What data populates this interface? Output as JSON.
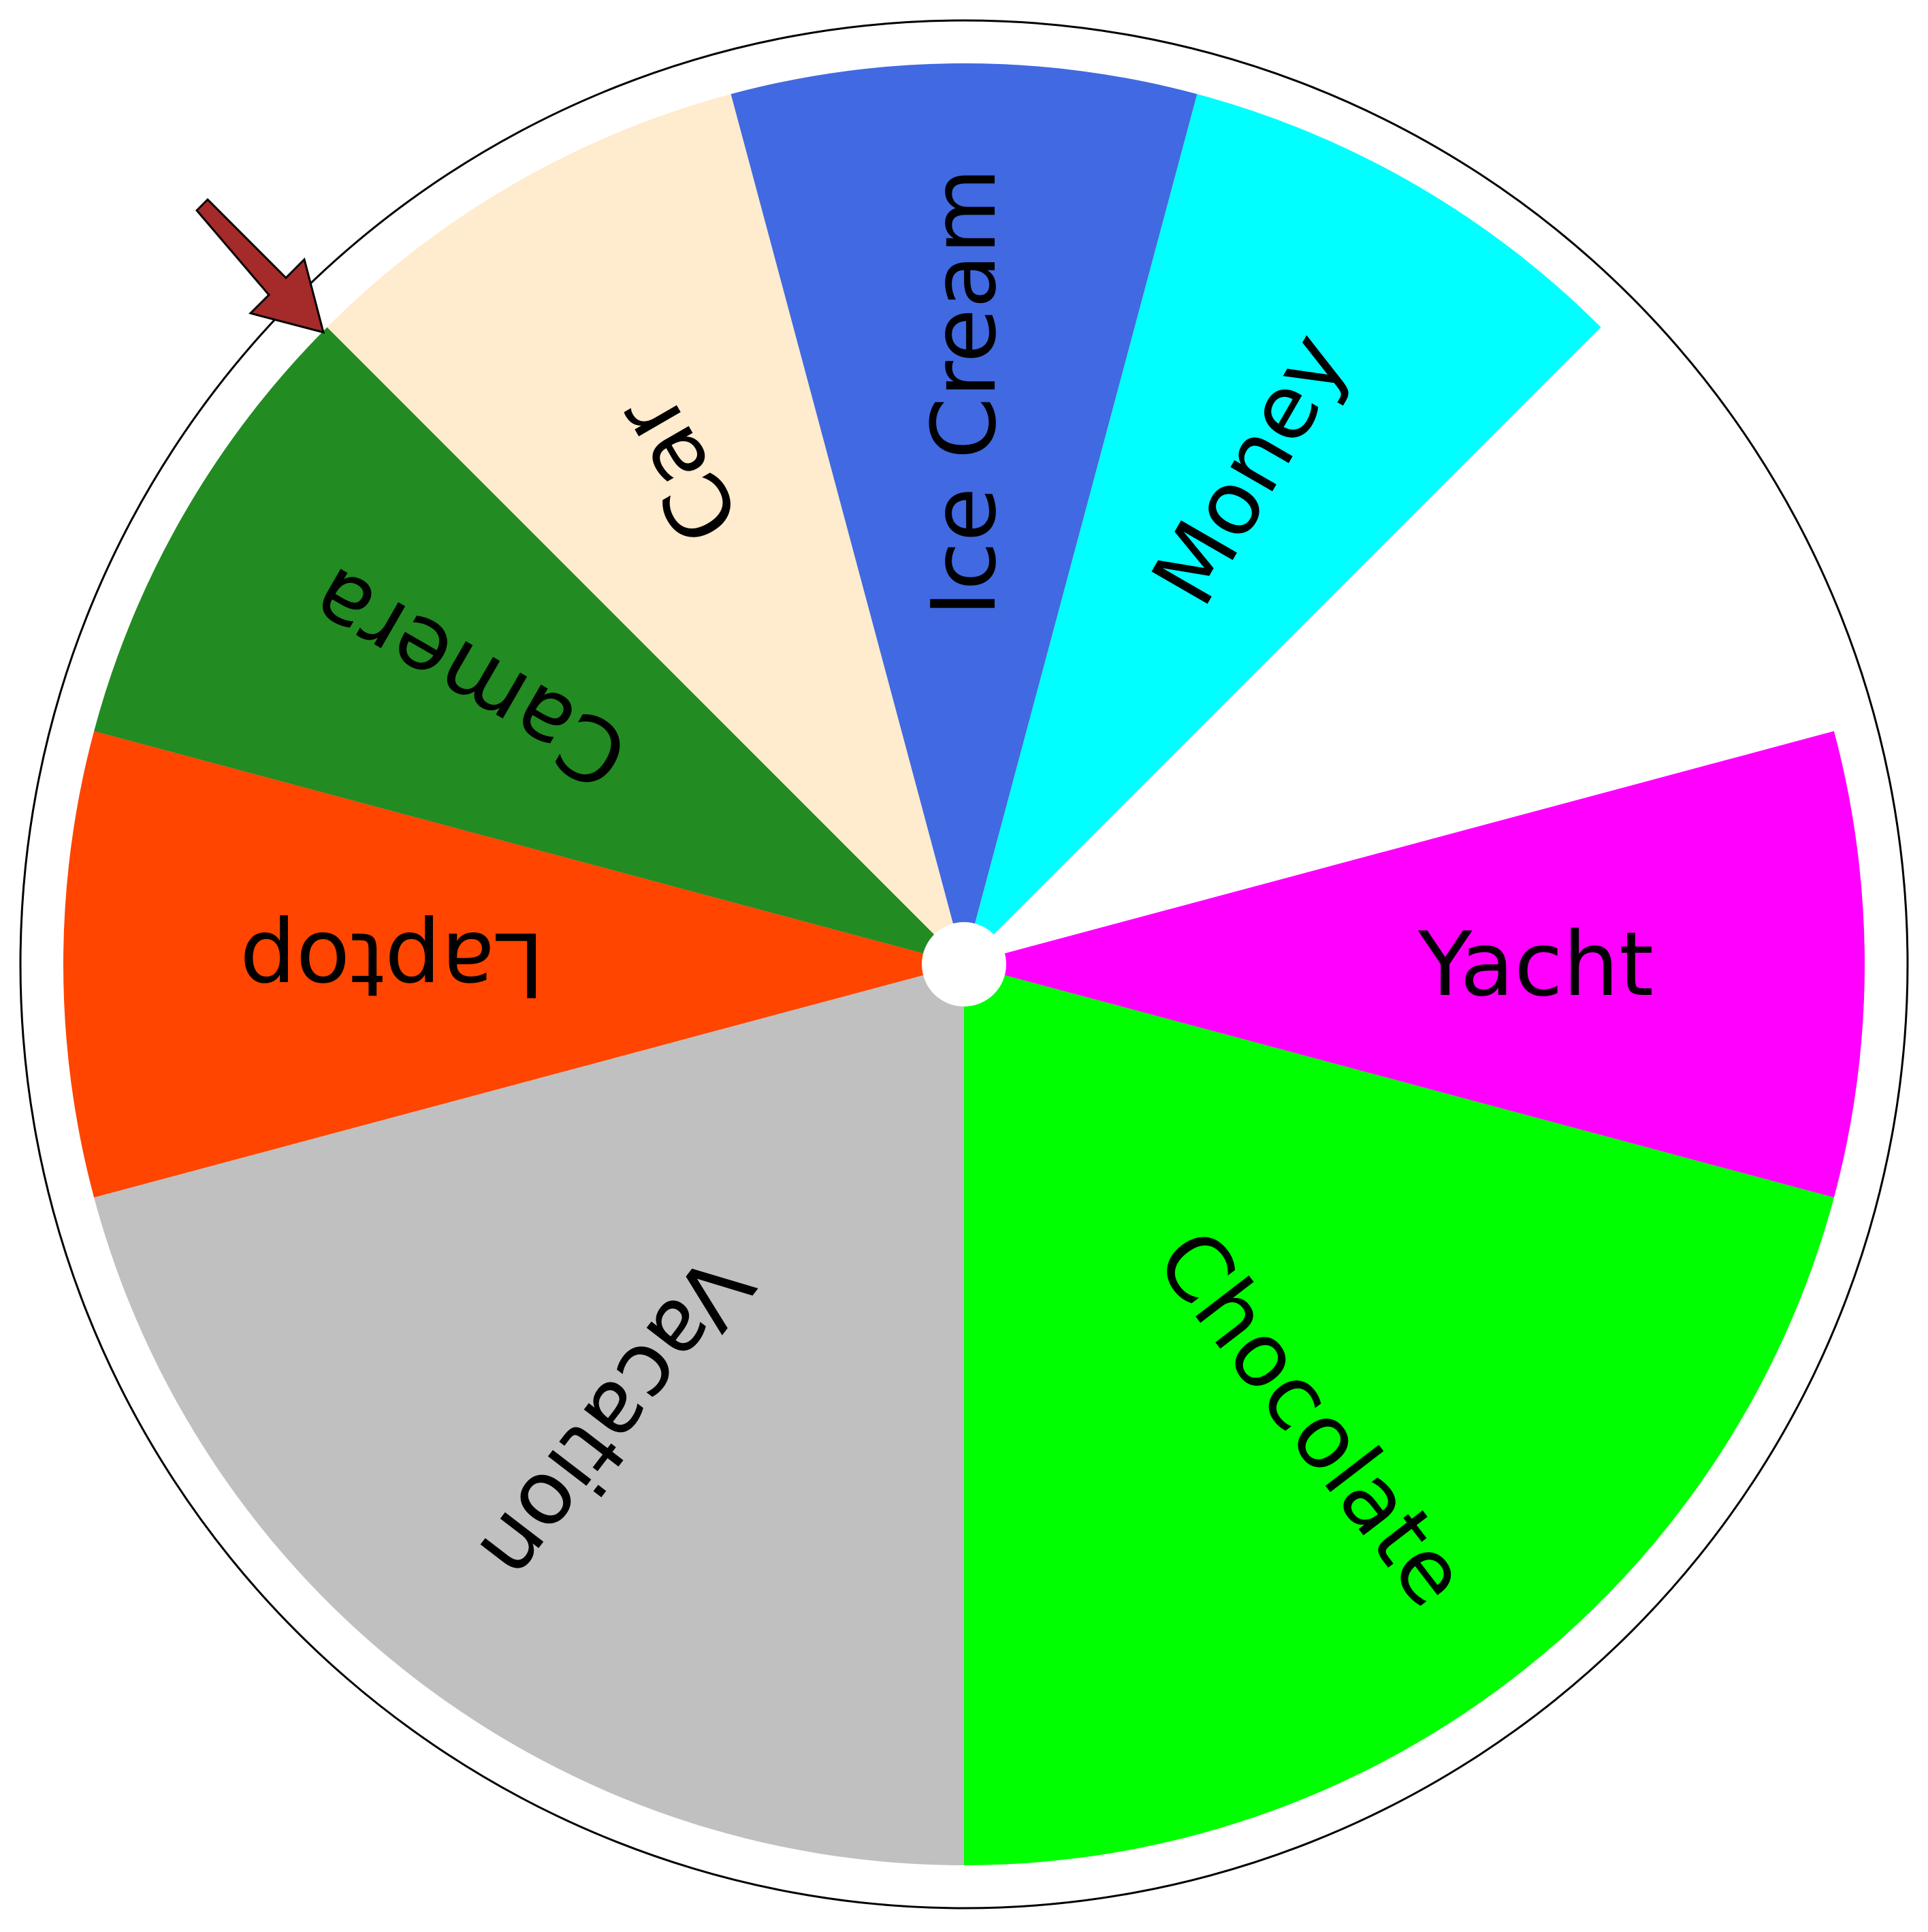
{
  "wheel": {
    "segments": [
      {
        "label": "Yacht",
        "color": "#ff00ff"
      },
      {
        "label": "Chocolate",
        "color": "#00ff00"
      },
      {
        "label": "Vacation",
        "color": "#c0c0c0"
      },
      {
        "label": "Laptop",
        "color": "#ff4500"
      },
      {
        "label": "Camera",
        "color": "#228b22"
      },
      {
        "label": "Car",
        "color": "#ffebcd"
      },
      {
        "label": "Ice Cream",
        "color": "#4169e1"
      },
      {
        "label": "Money",
        "color": "#00ffff"
      }
    ],
    "segment_spans_deg": [
      30,
      75,
      75,
      30,
      30,
      30,
      30,
      30
    ],
    "rim_color": "#ffffff",
    "outline_color": "#000000",
    "hub_color": "#ffffff",
    "pointer": {
      "icon": "arrow-down-right-icon",
      "fill_color": "#a52a2a",
      "stroke_color": "#000000"
    }
  }
}
